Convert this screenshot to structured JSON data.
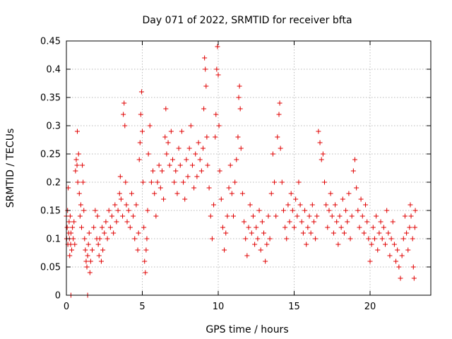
{
  "chart_data": {
    "type": "scatter",
    "title": "Day 071 of 2022, SRMTID for receiver bfta",
    "xlabel": "GPS time / hours",
    "ylabel": "SRMTID / TECUs",
    "xlim": [
      0,
      24
    ],
    "ylim": [
      0,
      0.45
    ],
    "xticks": [
      0,
      5,
      10,
      15,
      20
    ],
    "xtick_labels": [
      "0",
      "5",
      "10",
      "15",
      "20"
    ],
    "yticks": [
      0,
      0.05,
      0.1,
      0.15,
      0.2,
      0.25,
      0.3,
      0.35,
      0.4,
      0.45
    ],
    "ytick_labels": [
      "0",
      "0.05",
      "0.1",
      "0.15",
      "0.2",
      "0.25",
      "0.3",
      "0.35",
      "0.4",
      "0.45"
    ],
    "grid": true,
    "marker": "plus",
    "series_color": "#e00000",
    "points": [
      [
        0.05,
        0.12
      ],
      [
        0.08,
        0.15
      ],
      [
        0.1,
        0.09
      ],
      [
        0.12,
        0.19
      ],
      [
        0.15,
        0.11
      ],
      [
        0.18,
        0.13
      ],
      [
        0.2,
        0.1
      ],
      [
        0.22,
        0.07
      ],
      [
        0.25,
        0.14
      ],
      [
        0.28,
        0.09
      ],
      [
        0.3,
        0.11
      ],
      [
        0.35,
        0.08
      ],
      [
        0.4,
        0.12
      ],
      [
        0.45,
        0.1
      ],
      [
        0.5,
        0.13
      ],
      [
        0.55,
        0.09
      ],
      [
        0.6,
        0.22
      ],
      [
        0.65,
        0.24
      ],
      [
        0.7,
        0.23
      ],
      [
        0.72,
        0.29
      ],
      [
        0.75,
        0.2
      ],
      [
        0.8,
        0.25
      ],
      [
        0.85,
        0.18
      ],
      [
        0.9,
        0.14
      ],
      [
        0.95,
        0.16
      ],
      [
        1.0,
        0.12
      ],
      [
        1.05,
        0.23
      ],
      [
        1.1,
        0.2
      ],
      [
        1.15,
        0.15
      ],
      [
        1.2,
        0.1
      ],
      [
        1.25,
        0.08
      ],
      [
        1.3,
        0.06
      ],
      [
        1.35,
        0.05
      ],
      [
        1.4,
        0.07
      ],
      [
        1.45,
        0.09
      ],
      [
        1.5,
        0.11
      ],
      [
        1.55,
        0.04
      ],
      [
        1.6,
        0.06
      ],
      [
        1.7,
        0.08
      ],
      [
        1.8,
        0.12
      ],
      [
        1.9,
        0.15
      ],
      [
        2.0,
        0.1
      ],
      [
        2.05,
        0.14
      ],
      [
        2.1,
        0.09
      ],
      [
        2.15,
        0.07
      ],
      [
        2.2,
        0.1
      ],
      [
        2.3,
        0.06
      ],
      [
        2.35,
        0.12
      ],
      [
        2.4,
        0.08
      ],
      [
        2.5,
        0.11
      ],
      [
        2.6,
        0.13
      ],
      [
        2.7,
        0.1
      ],
      [
        2.8,
        0.15
      ],
      [
        2.9,
        0.12
      ],
      [
        3.0,
        0.14
      ],
      [
        3.1,
        0.11
      ],
      [
        3.2,
        0.16
      ],
      [
        3.3,
        0.13
      ],
      [
        3.4,
        0.15
      ],
      [
        3.5,
        0.18
      ],
      [
        3.55,
        0.21
      ],
      [
        3.6,
        0.17
      ],
      [
        3.7,
        0.14
      ],
      [
        3.75,
        0.32
      ],
      [
        3.8,
        0.34
      ],
      [
        3.85,
        0.3
      ],
      [
        3.9,
        0.2
      ],
      [
        3.95,
        0.16
      ],
      [
        4.0,
        0.13
      ],
      [
        4.1,
        0.15
      ],
      [
        4.2,
        0.12
      ],
      [
        4.3,
        0.18
      ],
      [
        4.4,
        0.14
      ],
      [
        4.5,
        0.1
      ],
      [
        4.6,
        0.16
      ],
      [
        4.7,
        0.08
      ],
      [
        4.75,
        0.11
      ],
      [
        4.8,
        0.24
      ],
      [
        4.85,
        0.27
      ],
      [
        4.9,
        0.32
      ],
      [
        4.95,
        0.36
      ],
      [
        5.0,
        0.29
      ],
      [
        5.05,
        0.2
      ],
      [
        5.1,
        0.12
      ],
      [
        5.15,
        0.06
      ],
      [
        5.2,
        0.04
      ],
      [
        5.25,
        0.08
      ],
      [
        5.3,
        0.1
      ],
      [
        5.35,
        0.15
      ],
      [
        5.4,
        0.25
      ],
      [
        5.5,
        0.3
      ],
      [
        5.6,
        0.2
      ],
      [
        5.7,
        0.22
      ],
      [
        5.8,
        0.18
      ],
      [
        5.9,
        0.14
      ],
      [
        6.0,
        0.2
      ],
      [
        6.1,
        0.23
      ],
      [
        6.2,
        0.19
      ],
      [
        6.3,
        0.22
      ],
      [
        6.4,
        0.17
      ],
      [
        6.5,
        0.28
      ],
      [
        6.55,
        0.33
      ],
      [
        6.6,
        0.25
      ],
      [
        6.7,
        0.27
      ],
      [
        6.8,
        0.23
      ],
      [
        6.9,
        0.29
      ],
      [
        7.0,
        0.24
      ],
      [
        7.1,
        0.2
      ],
      [
        7.2,
        0.22
      ],
      [
        7.3,
        0.18
      ],
      [
        7.4,
        0.26
      ],
      [
        7.5,
        0.23
      ],
      [
        7.6,
        0.29
      ],
      [
        7.7,
        0.2
      ],
      [
        7.8,
        0.17
      ],
      [
        7.9,
        0.24
      ],
      [
        8.0,
        0.21
      ],
      [
        8.1,
        0.26
      ],
      [
        8.2,
        0.3
      ],
      [
        8.3,
        0.23
      ],
      [
        8.4,
        0.19
      ],
      [
        8.5,
        0.25
      ],
      [
        8.6,
        0.21
      ],
      [
        8.7,
        0.27
      ],
      [
        8.8,
        0.24
      ],
      [
        8.9,
        0.22
      ],
      [
        9.0,
        0.26
      ],
      [
        9.05,
        0.33
      ],
      [
        9.1,
        0.42
      ],
      [
        9.15,
        0.4
      ],
      [
        9.2,
        0.37
      ],
      [
        9.25,
        0.28
      ],
      [
        9.3,
        0.23
      ],
      [
        9.4,
        0.19
      ],
      [
        9.5,
        0.14
      ],
      [
        9.6,
        0.1
      ],
      [
        9.7,
        0.16
      ],
      [
        9.8,
        0.28
      ],
      [
        9.85,
        0.32
      ],
      [
        9.9,
        0.4
      ],
      [
        9.95,
        0.44
      ],
      [
        10.0,
        0.39
      ],
      [
        10.05,
        0.3
      ],
      [
        10.1,
        0.22
      ],
      [
        10.2,
        0.17
      ],
      [
        10.3,
        0.12
      ],
      [
        10.4,
        0.08
      ],
      [
        10.5,
        0.11
      ],
      [
        10.6,
        0.14
      ],
      [
        10.7,
        0.19
      ],
      [
        10.8,
        0.23
      ],
      [
        10.9,
        0.18
      ],
      [
        11.0,
        0.14
      ],
      [
        11.1,
        0.2
      ],
      [
        11.2,
        0.24
      ],
      [
        11.3,
        0.28
      ],
      [
        11.35,
        0.35
      ],
      [
        11.4,
        0.37
      ],
      [
        11.45,
        0.33
      ],
      [
        11.5,
        0.26
      ],
      [
        11.6,
        0.18
      ],
      [
        11.7,
        0.13
      ],
      [
        11.8,
        0.1
      ],
      [
        11.9,
        0.07
      ],
      [
        12.0,
        0.12
      ],
      [
        12.1,
        0.16
      ],
      [
        12.2,
        0.11
      ],
      [
        12.3,
        0.14
      ],
      [
        12.4,
        0.09
      ],
      [
        12.5,
        0.12
      ],
      [
        12.6,
        0.1
      ],
      [
        12.7,
        0.15
      ],
      [
        12.8,
        0.08
      ],
      [
        12.9,
        0.13
      ],
      [
        13.0,
        0.11
      ],
      [
        13.1,
        0.06
      ],
      [
        13.2,
        0.09
      ],
      [
        13.3,
        0.14
      ],
      [
        13.4,
        0.1
      ],
      [
        13.5,
        0.18
      ],
      [
        13.6,
        0.25
      ],
      [
        13.7,
        0.2
      ],
      [
        13.8,
        0.14
      ],
      [
        13.9,
        0.28
      ],
      [
        14.0,
        0.32
      ],
      [
        14.05,
        0.34
      ],
      [
        14.1,
        0.26
      ],
      [
        14.2,
        0.2
      ],
      [
        14.3,
        0.15
      ],
      [
        14.4,
        0.12
      ],
      [
        14.5,
        0.1
      ],
      [
        14.6,
        0.16
      ],
      [
        14.7,
        0.13
      ],
      [
        14.8,
        0.18
      ],
      [
        14.9,
        0.15
      ],
      [
        15.0,
        0.12
      ],
      [
        15.1,
        0.17
      ],
      [
        15.2,
        0.14
      ],
      [
        15.3,
        0.2
      ],
      [
        15.4,
        0.16
      ],
      [
        15.5,
        0.13
      ],
      [
        15.6,
        0.11
      ],
      [
        15.7,
        0.15
      ],
      [
        15.8,
        0.09
      ],
      [
        15.9,
        0.12
      ],
      [
        16.0,
        0.14
      ],
      [
        16.1,
        0.11
      ],
      [
        16.2,
        0.16
      ],
      [
        16.3,
        0.13
      ],
      [
        16.4,
        0.1
      ],
      [
        16.5,
        0.14
      ],
      [
        16.6,
        0.29
      ],
      [
        16.7,
        0.27
      ],
      [
        16.8,
        0.24
      ],
      [
        16.9,
        0.25
      ],
      [
        17.0,
        0.2
      ],
      [
        17.1,
        0.16
      ],
      [
        17.2,
        0.12
      ],
      [
        17.3,
        0.15
      ],
      [
        17.4,
        0.18
      ],
      [
        17.5,
        0.14
      ],
      [
        17.6,
        0.11
      ],
      [
        17.7,
        0.16
      ],
      [
        17.8,
        0.13
      ],
      [
        17.9,
        0.09
      ],
      [
        18.0,
        0.14
      ],
      [
        18.1,
        0.12
      ],
      [
        18.2,
        0.17
      ],
      [
        18.3,
        0.11
      ],
      [
        18.4,
        0.15
      ],
      [
        18.5,
        0.13
      ],
      [
        18.6,
        0.18
      ],
      [
        18.7,
        0.1
      ],
      [
        18.8,
        0.14
      ],
      [
        18.9,
        0.22
      ],
      [
        19.0,
        0.24
      ],
      [
        19.1,
        0.19
      ],
      [
        19.2,
        0.15
      ],
      [
        19.3,
        0.12
      ],
      [
        19.4,
        0.17
      ],
      [
        19.5,
        0.14
      ],
      [
        19.6,
        0.11
      ],
      [
        19.7,
        0.16
      ],
      [
        19.8,
        0.13
      ],
      [
        19.9,
        0.1
      ],
      [
        20.0,
        0.06
      ],
      [
        20.1,
        0.09
      ],
      [
        20.2,
        0.12
      ],
      [
        20.3,
        0.1
      ],
      [
        20.4,
        0.14
      ],
      [
        20.5,
        0.08
      ],
      [
        20.6,
        0.11
      ],
      [
        20.7,
        0.13
      ],
      [
        20.8,
        0.1
      ],
      [
        20.9,
        0.12
      ],
      [
        21.0,
        0.09
      ],
      [
        21.1,
        0.15
      ],
      [
        21.2,
        0.11
      ],
      [
        21.3,
        0.07
      ],
      [
        21.4,
        0.1
      ],
      [
        21.5,
        0.13
      ],
      [
        21.6,
        0.09
      ],
      [
        21.7,
        0.06
      ],
      [
        21.8,
        0.08
      ],
      [
        21.9,
        0.05
      ],
      [
        22.0,
        0.03
      ],
      [
        22.1,
        0.07
      ],
      [
        22.2,
        0.1
      ],
      [
        22.3,
        0.14
      ],
      [
        22.4,
        0.11
      ],
      [
        22.5,
        0.08
      ],
      [
        22.6,
        0.12
      ],
      [
        22.65,
        0.16
      ],
      [
        22.7,
        0.14
      ],
      [
        22.8,
        0.1
      ],
      [
        22.85,
        0.05
      ],
      [
        22.9,
        0.03
      ],
      [
        22.95,
        0.12
      ],
      [
        22.98,
        0.15
      ],
      [
        0.3,
        0.0
      ],
      [
        1.4,
        0.0
      ],
      [
        0.0,
        0.14
      ],
      [
        0.02,
        0.1
      ]
    ]
  }
}
